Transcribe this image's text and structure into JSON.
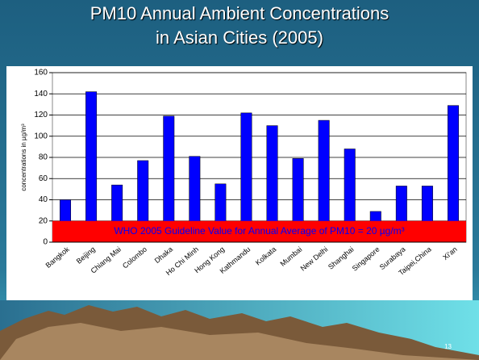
{
  "chart_data": {
    "type": "bar",
    "title": [
      "PM10 Annual Ambient Concentrations",
      "in Asian Cities (2005)"
    ],
    "y_label": "concentrations in µg/m³",
    "categories": [
      "Bangkok",
      "Beijing",
      "Chiang Mai",
      "Colombo",
      "Dhaka",
      "Ho Chi Minh",
      "Hong Kong",
      "Kathmandu",
      "Kolkata",
      "Mumbai",
      "New Delhi",
      "Shanghai",
      "Singapore",
      "Surabaya",
      "Taipei,China",
      "Xi'an"
    ],
    "values": [
      40,
      142,
      54,
      77,
      119,
      81,
      55,
      122,
      110,
      79,
      115,
      88,
      29,
      53,
      53,
      129
    ],
    "color": "#0000ff",
    "ylim": [
      0,
      160
    ],
    "yticks": [
      0,
      20,
      40,
      60,
      80,
      100,
      120,
      140,
      160
    ],
    "grid": true,
    "guideline": {
      "value": 20,
      "label": "WHO 2005 Guideline Value for Annual Average of PM10 = 20 µg/m³",
      "color": "#ff0000"
    }
  },
  "slide_number": "13"
}
